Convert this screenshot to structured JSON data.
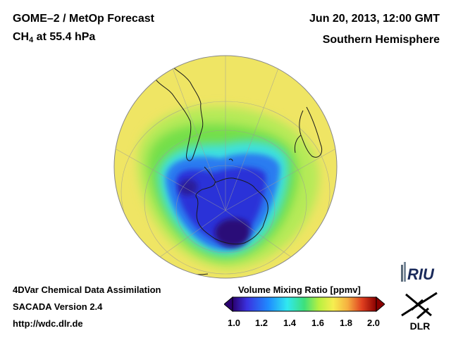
{
  "header": {
    "title": "GOME–2 / MetOp Forecast",
    "species": "CH",
    "species_sub": "4",
    "level": " at 55.4 hPa",
    "date": "Jun 20, 2013, 12:00 GMT",
    "hemisphere": "Southern Hemisphere"
  },
  "footer": {
    "assimilation": "4DVar Chemical Data Assimilation",
    "version": "SACADA Version 2.4",
    "url": "http://wdc.dlr.de"
  },
  "colorbar": {
    "title": "Volume Mixing Ratio [ppmv]",
    "ticks": [
      "1.0",
      "1.2",
      "1.4",
      "1.6",
      "1.8",
      "2.0"
    ],
    "range": [
      1.0,
      2.0
    ],
    "colors": [
      "#2a0070",
      "#3a32e0",
      "#1f8cff",
      "#30e8f0",
      "#3ee07a",
      "#b8f040",
      "#f6ee50",
      "#f6b040",
      "#e04020",
      "#8a0000"
    ]
  },
  "logos": {
    "riu": "RIU",
    "dlr": "DLR"
  },
  "map": {
    "projection": "orthographic",
    "center": "South Pole",
    "colors": {
      "background": "#efe564",
      "green": "#74df4a",
      "lightgreen": "#b6ea58",
      "cyan": "#3ee0e0",
      "blue": "#2a7cf0",
      "deepblue": "#2a32d8",
      "darkest": "#2a0a78"
    }
  }
}
